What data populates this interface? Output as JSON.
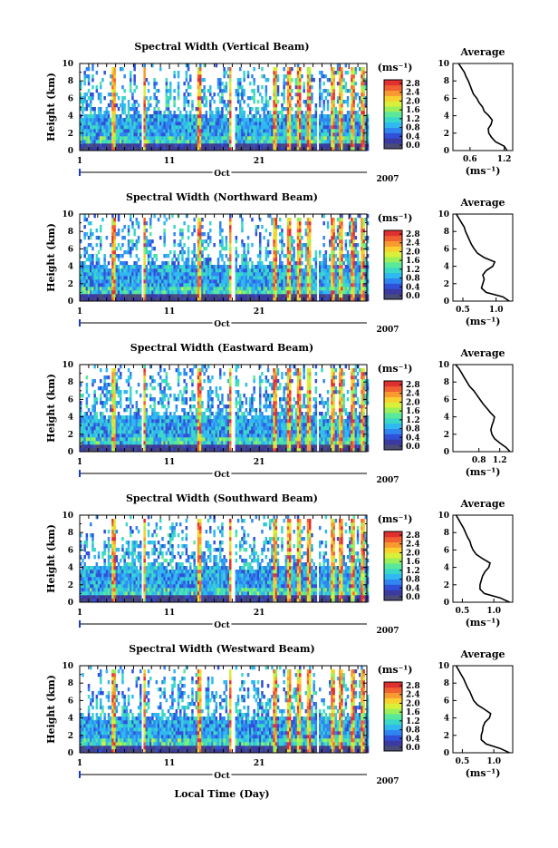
{
  "figure": {
    "xlabel": "Local Time (Day)",
    "colorbar_unit": "(ms⁻¹)",
    "colorbar_ticks": [
      "0.0",
      "0.4",
      "0.8",
      "1.2",
      "1.6",
      "2.0",
      "2.4",
      "2.8"
    ],
    "colorbar_colors": [
      "#4b4b78",
      "#3a3aa0",
      "#3050d8",
      "#2f86f0",
      "#30b8f0",
      "#3ad8c8",
      "#5ae89a",
      "#9af05a",
      "#d8f03a",
      "#f8d030",
      "#f89a30",
      "#f06030",
      "#e03030"
    ],
    "month_label": "Oct",
    "year_label": "2007",
    "x_tick_labels": [
      "1",
      "11",
      "21"
    ],
    "height_label": "Height (km)",
    "height_ticks": [
      "0",
      "2",
      "4",
      "6",
      "8",
      "10"
    ],
    "avg_title": "Average",
    "avg_xlabel": "(ms⁻¹)"
  },
  "chart_data": [
    {
      "type": "heatmap",
      "title": "Spectral Width (Vertical Beam)",
      "ylabel": "Height (km)",
      "ylim": [
        0,
        10
      ],
      "xlim": [
        1,
        33
      ],
      "avg_profile": {
        "xlim": [
          0.3,
          1.35
        ],
        "x_tick_labels": [
          "0.6",
          "1.2"
        ],
        "x_tick_values": [
          0.6,
          1.2
        ],
        "points": [
          [
            1.25,
            0
          ],
          [
            1.2,
            0.5
          ],
          [
            1.05,
            1
          ],
          [
            0.98,
            1.5
          ],
          [
            0.93,
            2
          ],
          [
            0.92,
            2.5
          ],
          [
            0.97,
            3
          ],
          [
            0.99,
            3.5
          ],
          [
            0.93,
            4
          ],
          [
            0.85,
            4.5
          ],
          [
            0.82,
            5
          ],
          [
            0.76,
            5.5
          ],
          [
            0.72,
            6
          ],
          [
            0.66,
            6.5
          ],
          [
            0.63,
            7
          ],
          [
            0.6,
            7.5
          ],
          [
            0.57,
            8
          ],
          [
            0.53,
            8.5
          ],
          [
            0.5,
            9
          ],
          [
            0.45,
            9.5
          ],
          [
            0.4,
            10
          ]
        ]
      }
    },
    {
      "type": "heatmap",
      "title": "Spectral Width (Northward Beam)",
      "ylabel": "Height (km)",
      "ylim": [
        0,
        10
      ],
      "xlim": [
        1,
        33
      ],
      "avg_profile": {
        "xlim": [
          0.35,
          1.25
        ],
        "x_tick_labels": [
          "0.5",
          "1.0"
        ],
        "x_tick_values": [
          0.5,
          1.0
        ],
        "points": [
          [
            1.2,
            0
          ],
          [
            1.1,
            0.5
          ],
          [
            0.85,
            1
          ],
          [
            0.78,
            1.5
          ],
          [
            0.8,
            2
          ],
          [
            0.82,
            2.5
          ],
          [
            0.8,
            3
          ],
          [
            0.85,
            3.5
          ],
          [
            0.95,
            4
          ],
          [
            0.98,
            4.5
          ],
          [
            0.82,
            5
          ],
          [
            0.72,
            5.5
          ],
          [
            0.67,
            6
          ],
          [
            0.63,
            6.5
          ],
          [
            0.6,
            7
          ],
          [
            0.57,
            7.5
          ],
          [
            0.54,
            8
          ],
          [
            0.52,
            8.5
          ],
          [
            0.48,
            9
          ],
          [
            0.44,
            9.5
          ],
          [
            0.4,
            10
          ]
        ]
      }
    },
    {
      "type": "heatmap",
      "title": "Spectral Width (Eastward Beam)",
      "ylabel": "Height (km)",
      "ylim": [
        0,
        10
      ],
      "xlim": [
        1,
        33
      ],
      "avg_profile": {
        "xlim": [
          0.3,
          1.45
        ],
        "x_tick_labels": [
          "0.8",
          "1.2"
        ],
        "x_tick_values": [
          0.8,
          1.2
        ],
        "points": [
          [
            1.4,
            0
          ],
          [
            1.32,
            0.5
          ],
          [
            1.2,
            1
          ],
          [
            1.1,
            1.5
          ],
          [
            1.05,
            2
          ],
          [
            1.03,
            2.5
          ],
          [
            1.05,
            3
          ],
          [
            1.08,
            3.5
          ],
          [
            1.1,
            4
          ],
          [
            1.02,
            4.5
          ],
          [
            0.95,
            5
          ],
          [
            0.88,
            5.5
          ],
          [
            0.82,
            6
          ],
          [
            0.76,
            6.5
          ],
          [
            0.7,
            7
          ],
          [
            0.62,
            7.5
          ],
          [
            0.57,
            8
          ],
          [
            0.52,
            8.5
          ],
          [
            0.47,
            9
          ],
          [
            0.42,
            9.5
          ],
          [
            0.35,
            10
          ]
        ]
      }
    },
    {
      "type": "heatmap",
      "title": "Spectral Width (Southward Beam)",
      "ylabel": "Height (km)",
      "ylim": [
        0,
        10
      ],
      "xlim": [
        1,
        33
      ],
      "avg_profile": {
        "xlim": [
          0.35,
          1.3
        ],
        "x_tick_labels": [
          "0.5",
          "1.0"
        ],
        "x_tick_values": [
          0.5,
          1.0
        ],
        "points": [
          [
            1.25,
            0
          ],
          [
            1.1,
            0.5
          ],
          [
            0.85,
            1
          ],
          [
            0.78,
            1.5
          ],
          [
            0.78,
            2
          ],
          [
            0.8,
            2.5
          ],
          [
            0.82,
            3
          ],
          [
            0.86,
            3.5
          ],
          [
            0.92,
            4
          ],
          [
            0.94,
            4.5
          ],
          [
            0.82,
            5
          ],
          [
            0.72,
            5.5
          ],
          [
            0.67,
            6
          ],
          [
            0.64,
            6.5
          ],
          [
            0.62,
            7
          ],
          [
            0.58,
            7.5
          ],
          [
            0.55,
            8
          ],
          [
            0.52,
            8.5
          ],
          [
            0.48,
            9
          ],
          [
            0.44,
            9.5
          ],
          [
            0.4,
            10
          ]
        ]
      }
    },
    {
      "type": "heatmap",
      "title": "Spectral Width (Westward Beam)",
      "ylabel": "Height (km)",
      "ylim": [
        0,
        10
      ],
      "xlim": [
        1,
        33
      ],
      "avg_profile": {
        "xlim": [
          0.35,
          1.3
        ],
        "x_tick_labels": [
          "0.5",
          "1.0"
        ],
        "x_tick_values": [
          0.5,
          1.0
        ],
        "points": [
          [
            1.25,
            0
          ],
          [
            1.1,
            0.5
          ],
          [
            0.88,
            1
          ],
          [
            0.8,
            1.5
          ],
          [
            0.8,
            2
          ],
          [
            0.82,
            2.5
          ],
          [
            0.83,
            3
          ],
          [
            0.86,
            3.5
          ],
          [
            0.93,
            4
          ],
          [
            0.95,
            4.5
          ],
          [
            0.85,
            5
          ],
          [
            0.74,
            5.5
          ],
          [
            0.68,
            6
          ],
          [
            0.65,
            6.5
          ],
          [
            0.62,
            7
          ],
          [
            0.58,
            7.5
          ],
          [
            0.55,
            8
          ],
          [
            0.52,
            8.5
          ],
          [
            0.48,
            9
          ],
          [
            0.44,
            9.5
          ],
          [
            0.4,
            10
          ]
        ]
      }
    }
  ]
}
